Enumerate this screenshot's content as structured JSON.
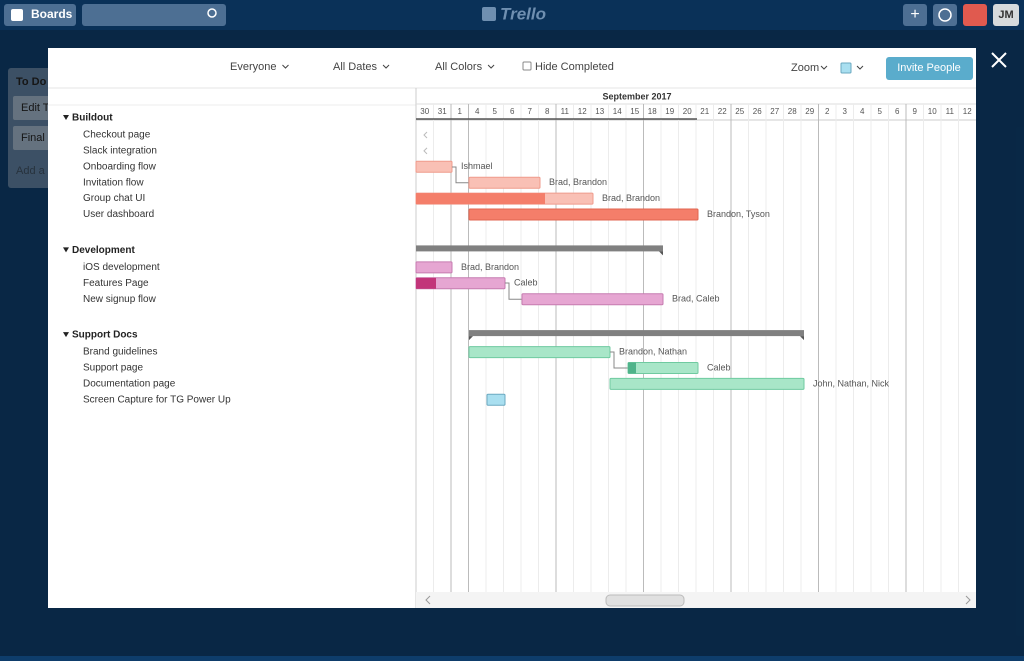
{
  "topbar": {
    "boards": "Boards",
    "logo": "Trello",
    "avatar": "JM"
  },
  "board": {
    "list_title": "To Do",
    "cards": [
      "Edit T",
      "Final"
    ],
    "add_card": "Add a"
  },
  "toolbar": {
    "filters": [
      "Everyone",
      "All Dates",
      "All Colors"
    ],
    "hide_completed": "Hide Completed",
    "zoom": "Zoom",
    "invite": "Invite People"
  },
  "timeline": {
    "month": "September 2017",
    "days": [
      30,
      31,
      1,
      4,
      5,
      6,
      7,
      8,
      11,
      12,
      13,
      14,
      15,
      18,
      19,
      20,
      21,
      22,
      25,
      26,
      27,
      28,
      29,
      2,
      3,
      4,
      5,
      6,
      9,
      10,
      11,
      12
    ]
  },
  "groups": [
    {
      "name": "Buildout",
      "tasks": [
        {
          "name": "Checkout page"
        },
        {
          "name": "Slack integration"
        },
        {
          "name": "Onboarding flow",
          "assignees": "Ishmael"
        },
        {
          "name": "Invitation flow",
          "assignees": "Brad, Brandon"
        },
        {
          "name": "Group chat UI",
          "assignees": "Brad, Brandon"
        },
        {
          "name": "User dashboard",
          "assignees": "Brandon, Tyson"
        }
      ]
    },
    {
      "name": "Development",
      "tasks": [
        {
          "name": "iOS development",
          "assignees": "Brad, Brandon"
        },
        {
          "name": "Features Page",
          "assignees": "Caleb"
        },
        {
          "name": "New signup flow",
          "assignees": "Brad, Caleb"
        }
      ]
    },
    {
      "name": "Support Docs",
      "tasks": [
        {
          "name": "Brand guidelines",
          "assignees": "Brandon, Nathan"
        },
        {
          "name": "Support page",
          "assignees": "Caleb"
        },
        {
          "name": "Documentation page",
          "assignees": "John, Nathan, Nick"
        },
        {
          "name": "Screen Capture for TG Power Up"
        }
      ]
    }
  ]
}
